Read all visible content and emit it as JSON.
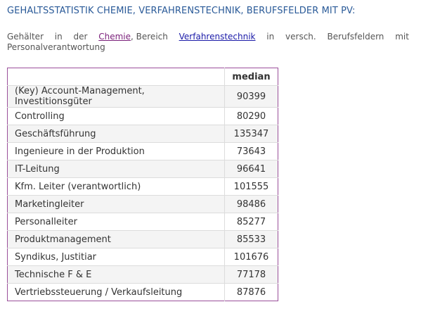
{
  "page": {
    "title": "GEHALTSSTATISTIK CHEMIE, VERFAHRENSTECHNIK, BERUFSFELDER MIT PV:"
  },
  "intro": {
    "w1": "Gehälter",
    "w2": "in",
    "w3": "der",
    "link_chemie": "Chemie",
    "w4": ", Bereich",
    "link_verfahren": "Verfahrenstechnik",
    "w5": "in",
    "w6": "versch.",
    "w7": "Berufsfeldern",
    "w8": "mit",
    "line2": "Personalverantwortung"
  },
  "table": {
    "header_name": "",
    "header_value": "median",
    "rows": [
      {
        "name": "(Key) Account-Management, Investitionsgüter",
        "median": "90399"
      },
      {
        "name": "Controlling",
        "median": "80290"
      },
      {
        "name": "Geschäftsführung",
        "median": "135347"
      },
      {
        "name": "Ingenieure in der Produktion",
        "median": "73643"
      },
      {
        "name": "IT-Leitung",
        "median": "96641"
      },
      {
        "name": "Kfm. Leiter (verantwortlich)",
        "median": "101555"
      },
      {
        "name": "Marketingleiter",
        "median": "98486"
      },
      {
        "name": "Personalleiter",
        "median": "85277"
      },
      {
        "name": "Produktmanagement",
        "median": "85533"
      },
      {
        "name": "Syndikus, Justitiar",
        "median": "101676"
      },
      {
        "name": "Technische F & E",
        "median": "77178"
      },
      {
        "name": "Vertriebssteuerung / Verkaufsleitung",
        "median": "87876"
      }
    ]
  }
}
